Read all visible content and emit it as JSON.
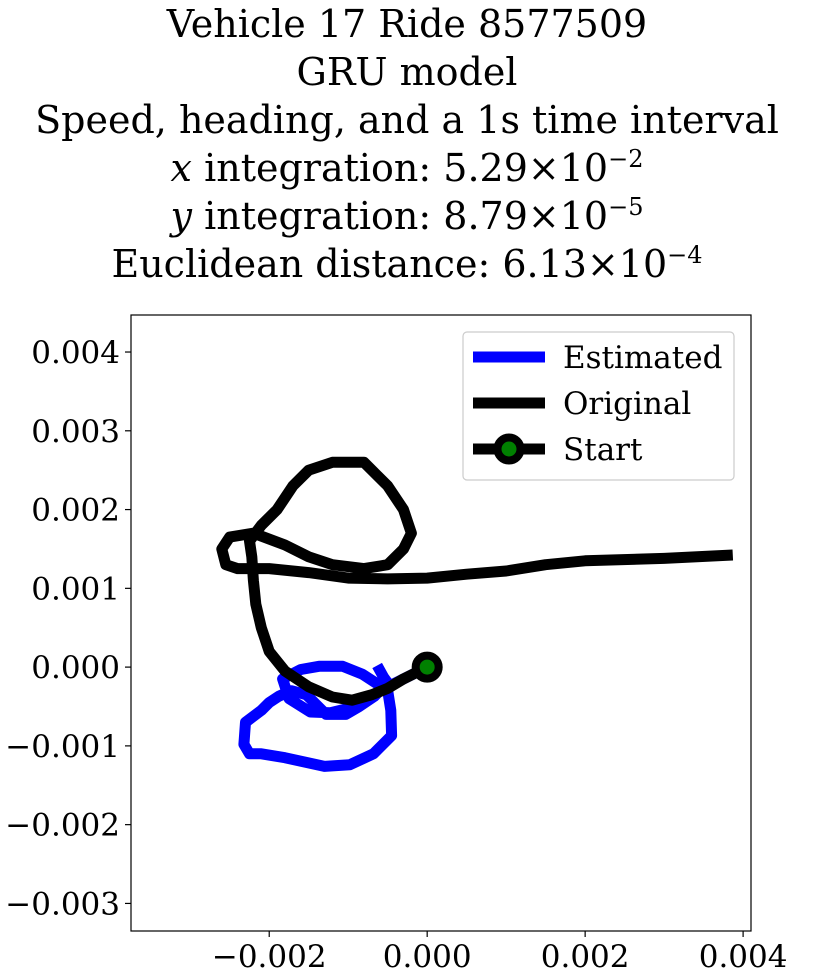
{
  "chart_data": {
    "type": "line",
    "title_lines": [
      "Vehicle 17 Ride 8577509",
      "GRU model",
      "Speed, heading, and a 1s time interval"
    ],
    "metrics": [
      {
        "variable": "x",
        "label": "integration: ",
        "mantissa": "5.29",
        "times": "×10",
        "exponent": "−2"
      },
      {
        "variable": "y",
        "label": "integration: ",
        "mantissa": "8.79",
        "times": "×10",
        "exponent": "−5"
      },
      {
        "variable": "",
        "label": "Euclidean distance: ",
        "mantissa": "6.13",
        "times": "×10",
        "exponent": "−4"
      }
    ],
    "xlim": [
      -0.00375,
      0.0041
    ],
    "ylim": [
      -0.00335,
      0.00447
    ],
    "xticks": [
      -0.002,
      0.0,
      0.002,
      0.004
    ],
    "xtick_labels": [
      "−0.002",
      "0.000",
      "0.002",
      "0.004"
    ],
    "yticks": [
      0.004,
      0.003,
      0.002,
      0.001,
      0.0,
      -0.001,
      -0.002,
      -0.003
    ],
    "ytick_labels": [
      "0.004",
      "0.003",
      "0.002",
      "0.001",
      "0.000",
      "−0.001",
      "−0.002",
      "−0.003"
    ],
    "grid": false,
    "legend_position": "top-right",
    "series": [
      {
        "name": "Estimated",
        "color": "#0000ff",
        "points": [
          [
            0.0,
            0.0
          ],
          [
            -0.0006,
            -0.0003
          ],
          [
            -0.0009,
            -0.0005
          ],
          [
            -0.00123,
            -0.00058
          ],
          [
            -0.00148,
            -0.00057
          ],
          [
            -0.00175,
            -0.0004
          ],
          [
            -0.00183,
            -0.00015
          ],
          [
            -0.0016,
            -3e-05
          ],
          [
            -0.00137,
            1e-05
          ],
          [
            -0.00107,
            1e-05
          ],
          [
            -0.00082,
            -9e-05
          ],
          [
            -0.0005,
            -0.0003
          ],
          [
            -0.00046,
            -0.00055
          ],
          [
            -0.00045,
            -0.00087
          ],
          [
            -0.00068,
            -0.0011
          ],
          [
            -0.00098,
            -0.00124
          ],
          [
            -0.0013,
            -0.00126
          ],
          [
            -0.0018,
            -0.00115
          ],
          [
            -0.0021,
            -0.0011
          ],
          [
            -0.00225,
            -0.0011
          ],
          [
            -0.00232,
            -0.00098
          ],
          [
            -0.0023,
            -0.0007
          ],
          [
            -0.0021,
            -0.00055
          ],
          [
            -0.002,
            -0.00045
          ],
          [
            -0.00188,
            -0.00037
          ],
          [
            -0.00172,
            -0.0003
          ],
          [
            -0.00153,
            -0.00035
          ],
          [
            -0.00145,
            -0.00043
          ],
          [
            -0.00128,
            -0.0006
          ],
          [
            -0.00103,
            -0.0006
          ],
          [
            -0.00086,
            -0.0005
          ],
          [
            -0.00067,
            -0.00037
          ],
          [
            -0.0005,
            -0.0002
          ],
          [
            -0.00055,
            -0.00013
          ],
          [
            -0.0006,
            -4e-05
          ]
        ]
      },
      {
        "name": "Original",
        "color": "#000000",
        "points": [
          [
            0.0,
            0.0
          ],
          [
            -0.0003,
            -0.00015
          ],
          [
            -0.0005,
            -0.00027
          ],
          [
            -0.0007,
            -0.00035
          ],
          [
            -0.00095,
            -0.00042
          ],
          [
            -0.0012,
            -0.00038
          ],
          [
            -0.0015,
            -0.00025
          ],
          [
            -0.0018,
            -5e-05
          ],
          [
            -0.002,
            0.0002
          ],
          [
            -0.0021,
            0.0005
          ],
          [
            -0.00217,
            0.0008
          ],
          [
            -0.0022,
            0.0011
          ],
          [
            -0.00222,
            0.0014
          ],
          [
            -0.00225,
            0.0016
          ],
          [
            -0.0021,
            0.0018
          ],
          [
            -0.0019,
            0.002
          ],
          [
            -0.0017,
            0.0023
          ],
          [
            -0.0015,
            0.0025
          ],
          [
            -0.0012,
            0.0026
          ],
          [
            -0.0008,
            0.0026
          ],
          [
            -0.0005,
            0.0023
          ],
          [
            -0.0003,
            0.002
          ],
          [
            -0.0002,
            0.0017
          ],
          [
            -0.0003,
            0.0015
          ],
          [
            -0.0005,
            0.0013
          ],
          [
            -0.0008,
            0.00125
          ],
          [
            -0.0012,
            0.0013
          ],
          [
            -0.0015,
            0.0014
          ],
          [
            -0.0018,
            0.00155
          ],
          [
            -0.0022,
            0.0017
          ],
          [
            -0.0025,
            0.00165
          ],
          [
            -0.0026,
            0.0015
          ],
          [
            -0.00255,
            0.0013
          ],
          [
            -0.0024,
            0.00125
          ],
          [
            -0.002,
            0.00125
          ],
          [
            -0.0015,
            0.0012
          ],
          [
            -0.001,
            0.00113
          ],
          [
            -0.0005,
            0.00112
          ],
          [
            0.0,
            0.00113
          ],
          [
            0.0005,
            0.00118
          ],
          [
            0.001,
            0.00122
          ],
          [
            0.0015,
            0.0013
          ],
          [
            0.002,
            0.00135
          ],
          [
            0.003,
            0.00138
          ],
          [
            0.0038,
            0.00142
          ]
        ]
      },
      {
        "name": "Start",
        "color": "#000000",
        "marker_face": "#008000",
        "points": [
          [
            0.0,
            0.0
          ]
        ]
      }
    ]
  }
}
